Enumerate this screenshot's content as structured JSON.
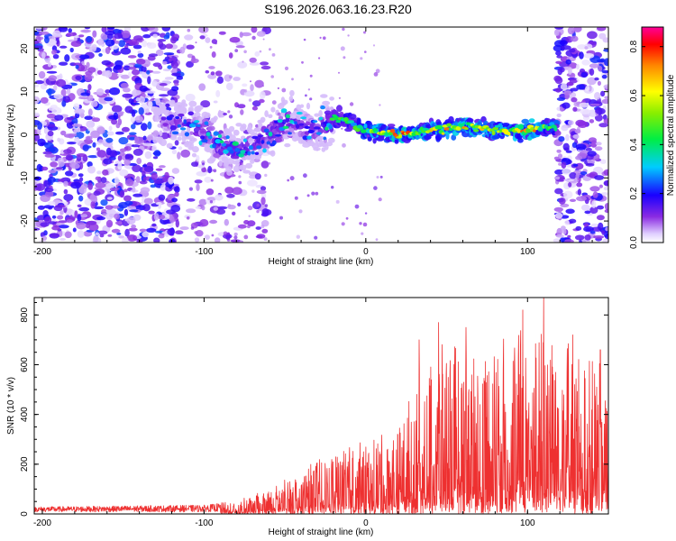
{
  "title": "S196.2026.063.16.23.R20",
  "chart_data": [
    {
      "type": "heatmap",
      "xlabel": "Height of straight line (km)",
      "ylabel": "Frequency (Hz)",
      "xlim": [
        -205,
        150
      ],
      "ylim": [
        -25,
        25
      ],
      "xticks": [
        -200,
        -100,
        0,
        100
      ],
      "yticks": [
        -20,
        -10,
        0,
        10,
        20
      ],
      "colorbar": {
        "label": "Normalized spectral amplitude",
        "range": [
          0.0,
          0.88
        ],
        "ticks": [
          "0.0",
          "0.2",
          "0.4",
          "0.6",
          "0.8"
        ],
        "tick_values": [
          0.0,
          0.2,
          0.4,
          0.6,
          0.8
        ]
      },
      "ridge": {
        "description": "dominant frequency ridge",
        "x": [
          -130,
          -115,
          -100,
          -90,
          -80,
          -70,
          -60,
          -50,
          -40,
          -30,
          -20,
          -10,
          0,
          20,
          40,
          60,
          80,
          100,
          115
        ],
        "freq": [
          3,
          3,
          1,
          -2,
          -4,
          -3,
          0,
          3,
          2,
          1,
          4,
          3,
          1,
          0,
          1,
          2,
          1,
          1,
          2
        ],
        "amplitude": [
          0.2,
          0.25,
          0.35,
          0.4,
          0.4,
          0.3,
          0.35,
          0.4,
          0.3,
          0.3,
          0.45,
          0.5,
          0.6,
          0.8,
          0.7,
          0.75,
          0.65,
          0.8,
          0.55
        ]
      }
    },
    {
      "type": "line",
      "xlabel": "Height of straight line (km)",
      "ylabel": "SNR (10 * v/v)",
      "xlim": [
        -205,
        150
      ],
      "ylim": [
        0,
        870
      ],
      "xticks": [
        -200,
        -100,
        0,
        100
      ],
      "yticks": [
        0,
        200,
        400,
        600,
        800
      ],
      "series": [
        {
          "name": "SNR",
          "color": "#ee3030",
          "envelope": {
            "x": [
              -205,
              -100,
              -80,
              -60,
              -40,
              -20,
              0,
              20,
              35,
              50,
              70,
              90,
              110,
              130,
              150
            ],
            "y_max": [
              30,
              40,
              60,
              110,
              200,
              280,
              330,
              380,
              700,
              770,
              720,
              820,
              870,
              730,
              650
            ]
          },
          "peaks": [
            {
              "x": 33,
              "y": 700
            },
            {
              "x": 45,
              "y": 770
            },
            {
              "x": 62,
              "y": 750
            },
            {
              "x": 97,
              "y": 820
            },
            {
              "x": 110,
              "y": 870
            },
            {
              "x": 128,
              "y": 720
            },
            {
              "x": 145,
              "y": 660
            }
          ]
        }
      ]
    }
  ]
}
